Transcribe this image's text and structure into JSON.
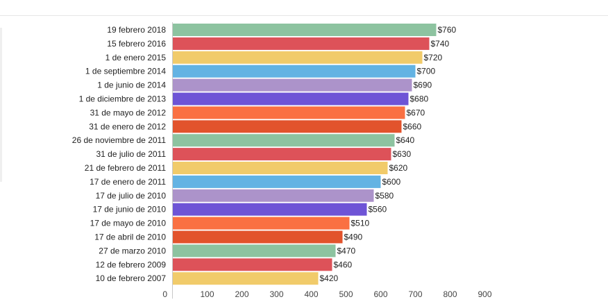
{
  "chart_data": {
    "type": "bar",
    "orientation": "horizontal",
    "title": "",
    "xlabel": "",
    "ylabel": "",
    "xlim": [
      0,
      900
    ],
    "x_ticks": [
      0,
      100,
      200,
      300,
      400,
      500,
      600,
      700,
      800,
      900
    ],
    "grid": false,
    "legend": "none",
    "value_prefix": "$",
    "categories": [
      "19 febrero 2018",
      "15 febrero 2016",
      "1 de enero 2015",
      "1 de septiembre 2014",
      "1 de junio de 2014",
      "1 de diciembre de 2013",
      "31 de mayo de 2012",
      "31 de enero de 2012",
      "26 de noviembre de 2011",
      "31 de julio de 2011",
      "21 de febrero de 2011",
      "17 de enero de 2011",
      "17 de julio de 2010",
      "17 de junio de 2010",
      "17 de mayo de 2010",
      "17 de abril de 2010",
      "27 de marzo 2010",
      "12 de febrero 2009",
      "10 de febrero 2007"
    ],
    "values": [
      760,
      740,
      720,
      700,
      690,
      680,
      670,
      660,
      640,
      630,
      620,
      600,
      580,
      560,
      510,
      490,
      470,
      460,
      420
    ],
    "colors": [
      "#8dc3a0",
      "#dd5259",
      "#f1cb6a",
      "#63b3e3",
      "#ac93ca",
      "#6e54d6",
      "#fa7042",
      "#e2532c"
    ]
  }
}
